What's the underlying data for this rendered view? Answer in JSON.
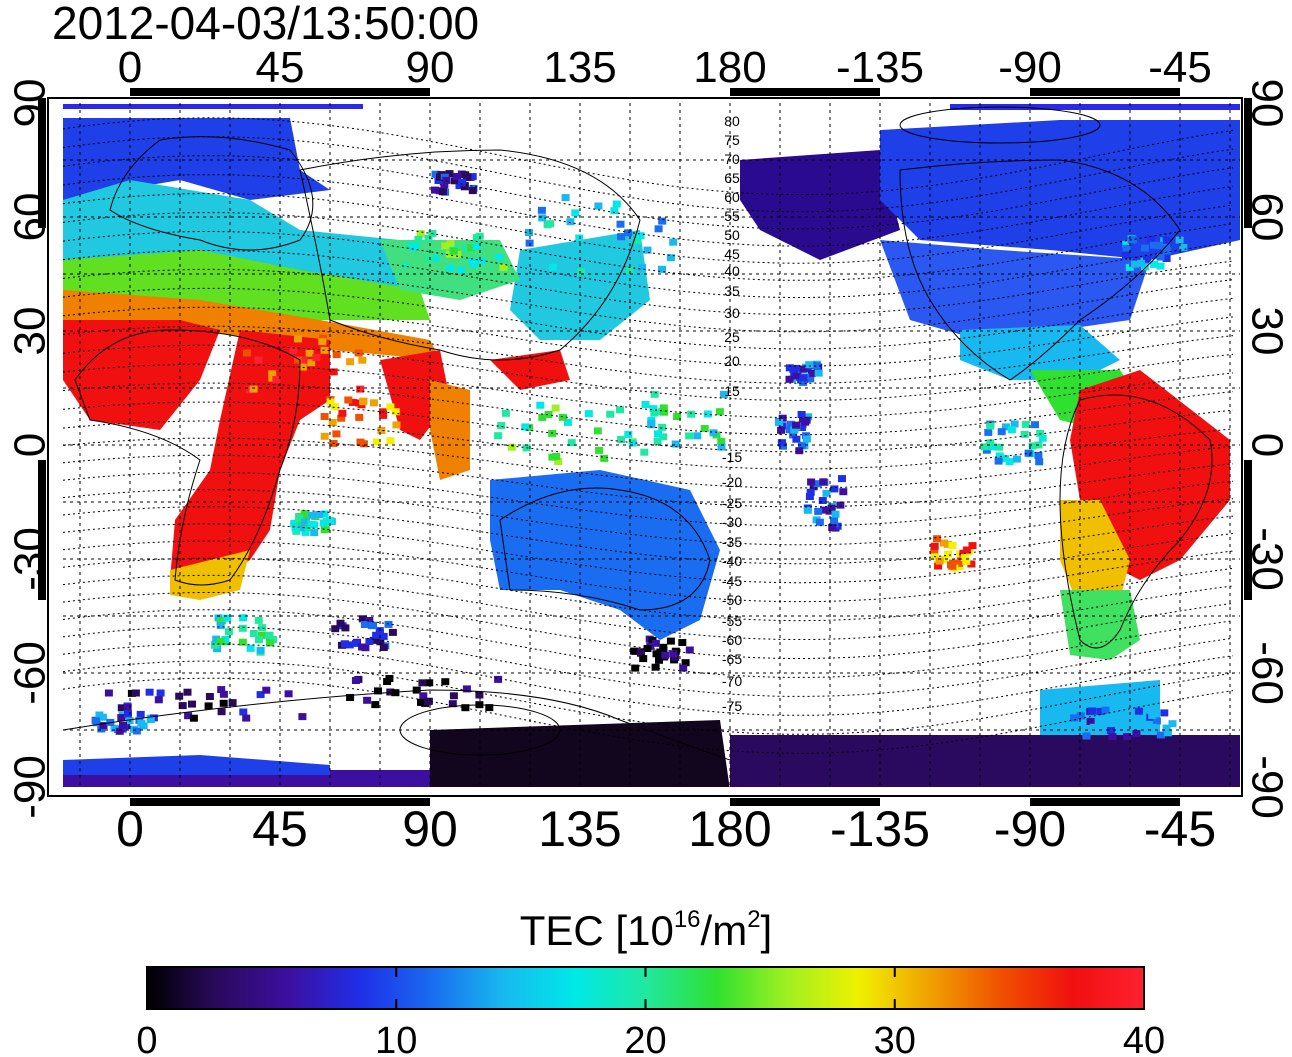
{
  "title": "2012-04-03/13:50:00",
  "map": {
    "top_lon_labels": [
      "0",
      "45",
      "90",
      "135",
      "180",
      "-135",
      "-90",
      "-45"
    ],
    "bottom_lon_labels": [
      "0",
      "45",
      "90",
      "135",
      "180",
      "-135",
      "-90",
      "-45"
    ],
    "left_lat_labels": [
      "90",
      "60",
      "30",
      "0",
      "-30",
      "-60",
      "-90"
    ],
    "right_lat_labels": [
      "90",
      "60",
      "30",
      "0",
      "-30",
      "-60",
      "-90"
    ],
    "contour_labels": [
      "80",
      "75",
      "70",
      "65",
      "60",
      "55",
      "50",
      "45",
      "40",
      "35",
      "30",
      "25",
      "20",
      "15",
      "-15",
      "-20",
      "-25",
      "-30",
      "-35",
      "-40",
      "-45",
      "-50",
      "-55",
      "-60",
      "-65",
      "-70",
      "-75"
    ]
  },
  "colorbar": {
    "label_prefix": "TEC  [10",
    "label_exp1": "16",
    "label_mid": "/m",
    "label_exp2": "2",
    "label_suffix": "]",
    "ticks": [
      "0",
      "10",
      "20",
      "30",
      "40"
    ],
    "range": [
      0,
      40
    ],
    "colors": [
      "#000000",
      "#2a0a5e",
      "#3d0fa0",
      "#1f2fe8",
      "#1a6cf0",
      "#18b8f0",
      "#00e8e8",
      "#20e8a0",
      "#30e030",
      "#a0f020",
      "#f0f000",
      "#f0a000",
      "#f05000",
      "#f01010",
      "#ff2030"
    ]
  }
}
